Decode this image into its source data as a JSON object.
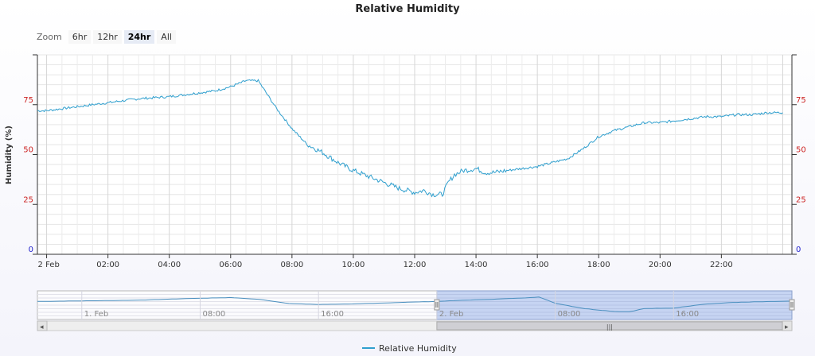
{
  "chart_data": {
    "type": "line",
    "title": "Relative Humidity",
    "ylabel": "Humidity (%)",
    "ylim": [
      0,
      100
    ],
    "yticks": [
      0,
      25,
      50,
      75
    ],
    "legend_position": "bottom-center",
    "x_tick_labels": [
      "2 Feb",
      "02:00",
      "04:00",
      "06:00",
      "08:00",
      "10:00",
      "12:00",
      "14:00",
      "16:00",
      "18:00",
      "20:00",
      "22:00"
    ],
    "x_tick_hours": [
      0,
      2,
      4,
      6,
      8,
      10,
      12,
      14,
      16,
      18,
      20,
      22
    ],
    "series": [
      {
        "name": "Relative Humidity",
        "color": "#2f9fce",
        "x": [
          -0.3,
          0,
          1,
          2,
          3,
          4,
          5,
          5.5,
          6,
          6.5,
          6.9,
          7.2,
          7.5,
          8,
          8.5,
          9,
          9.5,
          10,
          10.5,
          11,
          11.5,
          12,
          12.3,
          12.6,
          12.9,
          13.1,
          13.3,
          13.6,
          14,
          14.3,
          14.6,
          15,
          15.5,
          16,
          16.5,
          17,
          17.5,
          18,
          18.5,
          19,
          19.5,
          20,
          20.5,
          21,
          21.5,
          22,
          22.5,
          23,
          23.5,
          24
        ],
        "values": [
          72,
          72,
          74,
          76,
          78,
          79,
          81,
          82,
          84,
          87,
          87,
          80,
          73,
          63,
          55,
          51,
          46,
          42,
          39,
          36,
          33,
          31,
          32,
          30,
          30,
          36,
          40,
          42,
          43,
          41,
          41,
          42,
          43,
          44,
          46,
          48,
          53,
          59,
          62,
          64,
          66,
          66,
          67,
          68,
          69,
          69,
          70,
          70,
          71,
          71
        ]
      }
    ],
    "navigator": {
      "labels": [
        "1. Feb",
        "08:00",
        "16:00",
        "2. Feb",
        "08:00",
        "16:00"
      ],
      "label_hours": [
        -24,
        -16,
        -8,
        0,
        8,
        16
      ],
      "x_range_hours": [
        -27,
        24
      ],
      "selection_hours": [
        0,
        24
      ],
      "x": [
        -27,
        -24,
        -20,
        -17,
        -14,
        -12,
        -10,
        -8,
        -6,
        -4,
        -2,
        0,
        2,
        4,
        6,
        6.9,
        8,
        10,
        12,
        13,
        14,
        16,
        18,
        20,
        22,
        24
      ],
      "values": [
        70,
        72,
        75,
        81,
        85,
        78,
        62,
        58,
        60,
        63,
        67,
        70,
        75,
        79,
        84,
        87,
        63,
        42,
        31,
        30,
        42,
        44,
        59,
        66,
        69,
        71
      ]
    }
  },
  "zoom": {
    "label": "Zoom",
    "buttons": [
      "6hr",
      "12hr",
      "24hr",
      "All"
    ],
    "active": "24hr"
  },
  "scrollbar": {
    "left_arrow": "◂",
    "right_arrow": "▸",
    "grip": "|||"
  }
}
